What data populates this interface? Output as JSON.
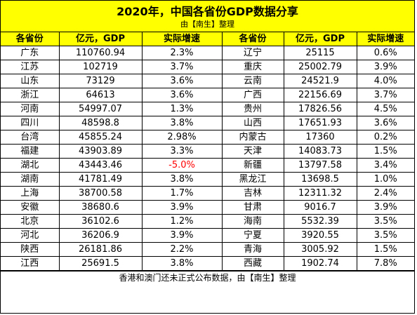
{
  "title": "2020年，中国各省份GDP数据分享",
  "subtitle": "由【南生】整理",
  "headers": [
    "各省份",
    "亿元，GDP",
    "实际增速",
    "各省份",
    "亿元，GDP",
    "实际增速"
  ],
  "rows": [
    {
      "p1": "广东",
      "g1": "110760.94",
      "r1": "2.3%",
      "p2": "辽宁",
      "g2": "25115",
      "r2": "0.6%"
    },
    {
      "p1": "江苏",
      "g1": "102719",
      "r1": "3.7%",
      "p2": "重庆",
      "g2": "25002.79",
      "r2": "3.9%"
    },
    {
      "p1": "山东",
      "g1": "73129",
      "r1": "3.6%",
      "p2": "云南",
      "g2": "24521.9",
      "r2": "4.0%"
    },
    {
      "p1": "浙江",
      "g1": "64613",
      "r1": "3.6%",
      "p2": "广西",
      "g2": "22156.69",
      "r2": "3.7%"
    },
    {
      "p1": "河南",
      "g1": "54997.07",
      "r1": "1.3%",
      "p2": "贵州",
      "g2": "17826.56",
      "r2": "4.5%"
    },
    {
      "p1": "四川",
      "g1": "48598.8",
      "r1": "3.8%",
      "p2": "山西",
      "g2": "17651.93",
      "r2": "3.6%"
    },
    {
      "p1": "台湾",
      "g1": "45855.24",
      "r1": "2.98%",
      "p2": "内蒙古",
      "g2": "17360",
      "r2": "0.2%"
    },
    {
      "p1": "福建",
      "g1": "43903.89",
      "r1": "3.3%",
      "p2": "天津",
      "g2": "14083.73",
      "r2": "1.5%"
    },
    {
      "p1": "湖北",
      "g1": "43443.46",
      "r1": "-5.0%",
      "p2": "新疆",
      "g2": "13797.58",
      "r2": "3.4%"
    },
    {
      "p1": "湖南",
      "g1": "41781.49",
      "r1": "3.8%",
      "p2": "黑龙江",
      "g2": "13698.5",
      "r2": "1.0%"
    },
    {
      "p1": "上海",
      "g1": "38700.58",
      "r1": "1.7%",
      "p2": "吉林",
      "g2": "12311.32",
      "r2": "2.4%"
    },
    {
      "p1": "安徽",
      "g1": "38680.6",
      "r1": "3.9%",
      "p2": "甘肃",
      "g2": "9016.7",
      "r2": "3.9%"
    },
    {
      "p1": "北京",
      "g1": "36102.6",
      "r1": "1.2%",
      "p2": "海南",
      "g2": "5532.39",
      "r2": "3.5%"
    },
    {
      "p1": "河北",
      "g1": "36206.9",
      "r1": "3.9%",
      "p2": "宁夏",
      "g2": "3920.55",
      "r2": "3.5%"
    },
    {
      "p1": "陕西",
      "g1": "26181.86",
      "r1": "2.2%",
      "p2": "青海",
      "g2": "3005.92",
      "r2": "1.5%"
    },
    {
      "p1": "江西",
      "g1": "25691.5",
      "r1": "3.8%",
      "p2": "西藏",
      "g2": "1902.74",
      "r2": "7.8%"
    }
  ],
  "negative_color": "#ff0000",
  "header_color": "#ffff00",
  "footer": "香港和澳门还未正式公布数据，由【南生】整理"
}
